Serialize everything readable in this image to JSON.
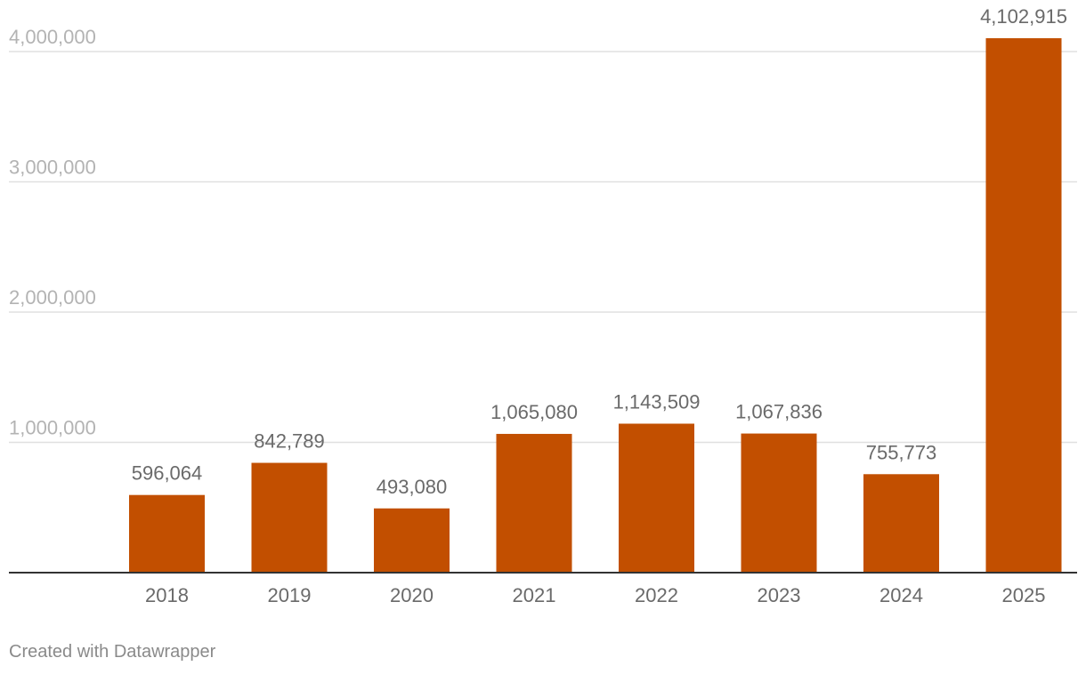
{
  "chart_data": {
    "type": "bar",
    "categories": [
      "2018",
      "2019",
      "2020",
      "2021",
      "2022",
      "2023",
      "2024",
      "2025"
    ],
    "values": [
      596064,
      842789,
      493080,
      1065080,
      1143509,
      1067836,
      755773,
      4102915
    ],
    "value_labels": [
      "596,064",
      "842,789",
      "493,080",
      "1,065,080",
      "1,143,509",
      "1,067,836",
      "755,773",
      "4,102,915"
    ],
    "yticks": [
      1000000,
      2000000,
      3000000,
      4000000
    ],
    "ytick_labels": [
      "1,000,000",
      "2,000,000",
      "3,000,000",
      "4,000,000"
    ],
    "ylim": [
      0,
      4000000
    ],
    "grid": true,
    "bar_color": "#c24f00",
    "gridline_color": "#e0e0e0",
    "baseline_color": "#333333"
  },
  "credit": {
    "text": "Created with Datawrapper"
  }
}
